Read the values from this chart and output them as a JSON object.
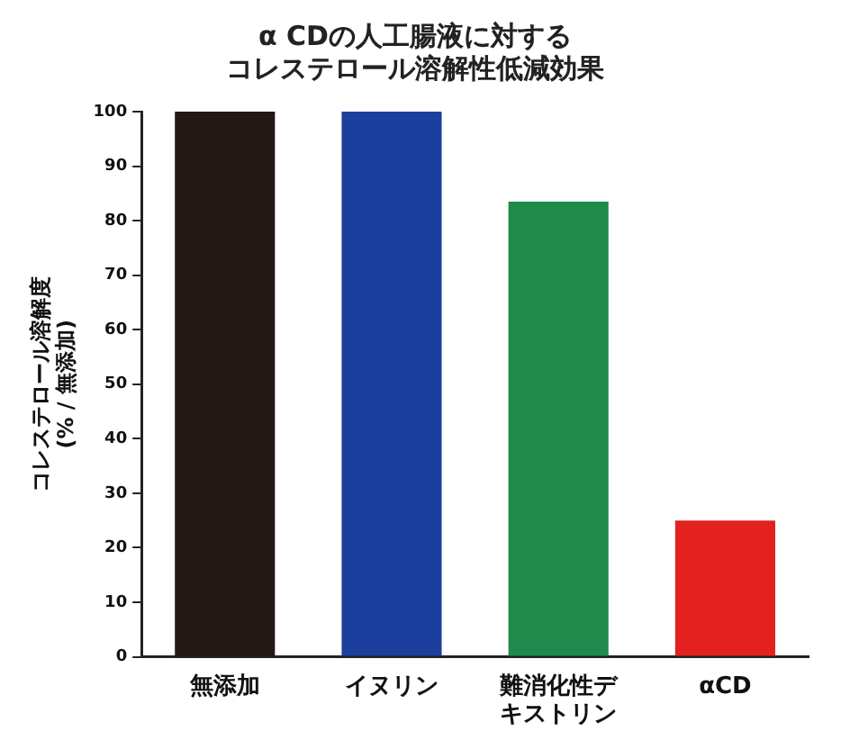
{
  "chart_data": {
    "type": "bar",
    "title": [
      "α CDの人工腸液に対する",
      "コレステロール溶解性低減効果"
    ],
    "ylabel": [
      "コレステロール溶解度",
      "(% / 無添加)"
    ],
    "categories": [
      "無添加",
      "イヌリン",
      "難消化性デキストリン",
      "αCD"
    ],
    "values": [
      100,
      100,
      83.5,
      25
    ],
    "colors": [
      "#231815",
      "#1c3f9e",
      "#1f8a4c",
      "#e3211e"
    ],
    "ylim": [
      0,
      100
    ],
    "yticks": [
      0,
      10,
      20,
      30,
      40,
      50,
      60,
      70,
      80,
      90,
      100
    ],
    "grid": false,
    "legend": false
  }
}
